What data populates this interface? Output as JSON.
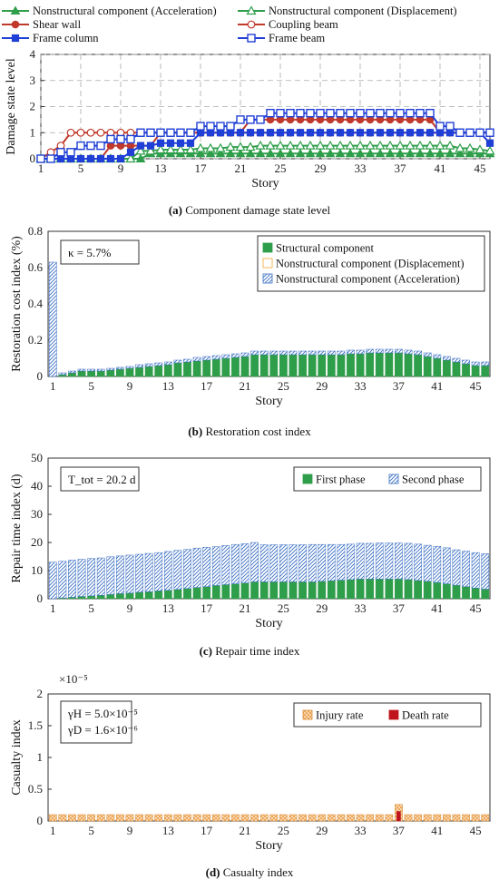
{
  "chart_data": [
    {
      "type": "line",
      "xlabel": "Story",
      "ylabel": "Damage state level",
      "xlim": [
        1,
        46
      ],
      "ylim": [
        0,
        4
      ],
      "xticks": [
        "1",
        "5",
        "9",
        "13",
        "17",
        "21",
        "25",
        "29",
        "33",
        "37",
        "41",
        "45"
      ],
      "yticks": [
        "0",
        "1",
        "2",
        "3",
        "4"
      ],
      "grid": true,
      "legend_position": "top",
      "caption_label": "(a)",
      "caption": "Component damage state level",
      "series": [
        {
          "name": "Nonstructural component (Acceleration)",
          "color": "#2e9e4a",
          "marker": "triangle-filled",
          "values": [
            0,
            0,
            0,
            0,
            0,
            0,
            0,
            0,
            0,
            0,
            0,
            0.2,
            0.2,
            0.2,
            0.2,
            0.2,
            0.2,
            0.2,
            0.2,
            0.2,
            0.2,
            0.2,
            0.2,
            0.2,
            0.2,
            0.2,
            0.2,
            0.2,
            0.2,
            0.2,
            0.2,
            0.2,
            0.2,
            0.2,
            0.2,
            0.2,
            0.2,
            0.2,
            0.2,
            0.2,
            0.2,
            0.2,
            0.2,
            0.2,
            0.2,
            0.2
          ]
        },
        {
          "name": "Nonstructural component (Displacement)",
          "color": "#2e9e4a",
          "marker": "triangle-open",
          "values": [
            0,
            0,
            0,
            0,
            0,
            0,
            0,
            0,
            0,
            0,
            0.3,
            0.3,
            0.35,
            0.35,
            0.35,
            0.35,
            0.4,
            0.4,
            0.4,
            0.45,
            0.45,
            0.45,
            0.5,
            0.5,
            0.5,
            0.5,
            0.5,
            0.5,
            0.5,
            0.5,
            0.5,
            0.5,
            0.5,
            0.5,
            0.5,
            0.5,
            0.5,
            0.5,
            0.5,
            0.5,
            0.5,
            0.5,
            0.4,
            0.4,
            0.35,
            0.3
          ]
        },
        {
          "name": "Shear wall",
          "color": "#c0392b",
          "marker": "circle-filled",
          "values": [
            0,
            0,
            0,
            0,
            0,
            0,
            0,
            0.5,
            0.5,
            0.5,
            0.5,
            0.5,
            1,
            1,
            1,
            1,
            1,
            1,
            1,
            1,
            1,
            1.5,
            1.5,
            1.5,
            1.5,
            1.5,
            1.5,
            1.5,
            1.5,
            1.5,
            1.5,
            1.5,
            1.5,
            1.5,
            1.5,
            1.5,
            1.5,
            1.5,
            1.5,
            1.5,
            1,
            1,
            1,
            1,
            1,
            1
          ]
        },
        {
          "name": "Coupling beam",
          "color": "#c0392b",
          "marker": "circle-open",
          "values": [
            0,
            0.25,
            0.5,
            1,
            1,
            1,
            1,
            1,
            1,
            1,
            1,
            1,
            1,
            1,
            1,
            1,
            1,
            1,
            1,
            1,
            1,
            1,
            1,
            1,
            1,
            1,
            1,
            1,
            1,
            1,
            1,
            1,
            1,
            1,
            1,
            1,
            1,
            1,
            1,
            1,
            1,
            1,
            1,
            1,
            1,
            1
          ]
        },
        {
          "name": "Frame column",
          "color": "#1f3fd6",
          "marker": "square-filled",
          "values": [
            0,
            0,
            0,
            0,
            0,
            0,
            0,
            0,
            0,
            0.25,
            0.5,
            0.5,
            0.6,
            0.6,
            0.6,
            0.6,
            1,
            1,
            1,
            1,
            1,
            1,
            1,
            1,
            1,
            1,
            1,
            1,
            1,
            1,
            1,
            1,
            1,
            1,
            1,
            1,
            1,
            1,
            1,
            1,
            1,
            1,
            1,
            1,
            1,
            0.6
          ]
        },
        {
          "name": "Frame beam",
          "color": "#1f3fd6",
          "marker": "square-open",
          "values": [
            0,
            0,
            0.25,
            0.25,
            0.5,
            0.5,
            0.5,
            0.75,
            0.75,
            0.75,
            1,
            1,
            1,
            1,
            1,
            1,
            1.25,
            1.25,
            1.25,
            1.25,
            1.5,
            1.5,
            1.5,
            1.75,
            1.75,
            1.75,
            1.75,
            1.75,
            1.75,
            1.75,
            1.75,
            1.75,
            1.75,
            1.75,
            1.75,
            1.75,
            1.75,
            1.75,
            1.75,
            1.75,
            1.25,
            1.25,
            1,
            1,
            1,
            1
          ]
        }
      ]
    },
    {
      "type": "bar",
      "stacked": true,
      "xlabel": "Story",
      "ylabel": "Restoration cost index (%)",
      "xlim": [
        1,
        46
      ],
      "ylim": [
        0,
        0.8
      ],
      "xticks": [
        "1",
        "5",
        "9",
        "13",
        "17",
        "21",
        "25",
        "29",
        "33",
        "37",
        "41",
        "45"
      ],
      "yticks": [
        "0",
        "0.2",
        "0.4",
        "0.6",
        "0.8"
      ],
      "annotation": "κ = 5.7%",
      "legend_position": "top-right",
      "caption_label": "(b)",
      "caption": "Restoration cost index",
      "series": [
        {
          "name": "Structural component",
          "color": "#2e9e4a",
          "pattern": "solid",
          "values": [
            0,
            0.01,
            0.02,
            0.03,
            0.03,
            0.03,
            0.035,
            0.04,
            0.045,
            0.05,
            0.055,
            0.06,
            0.065,
            0.075,
            0.08,
            0.085,
            0.09,
            0.095,
            0.1,
            0.105,
            0.11,
            0.12,
            0.12,
            0.12,
            0.12,
            0.12,
            0.12,
            0.12,
            0.12,
            0.12,
            0.12,
            0.125,
            0.125,
            0.13,
            0.13,
            0.13,
            0.13,
            0.125,
            0.12,
            0.11,
            0.1,
            0.09,
            0.08,
            0.07,
            0.06,
            0.06
          ]
        },
        {
          "name": "Nonstructural component (Displacement)",
          "color": "#f0a830",
          "pattern": "open",
          "values": [
            0,
            0,
            0,
            0,
            0,
            0,
            0,
            0,
            0,
            0,
            0,
            0,
            0,
            0,
            0,
            0,
            0,
            0,
            0,
            0,
            0,
            0,
            0,
            0,
            0,
            0,
            0,
            0,
            0,
            0,
            0,
            0,
            0,
            0,
            0,
            0,
            0,
            0,
            0,
            0,
            0,
            0,
            0,
            0,
            0,
            0
          ]
        },
        {
          "name": "Nonstructural component (Acceleration)",
          "color": "#3a6fc4",
          "pattern": "hatch",
          "values": [
            0.63,
            0.01,
            0.01,
            0.01,
            0.01,
            0.01,
            0.01,
            0.01,
            0.01,
            0.015,
            0.015,
            0.015,
            0.015,
            0.015,
            0.015,
            0.02,
            0.02,
            0.02,
            0.02,
            0.02,
            0.02,
            0.02,
            0.02,
            0.02,
            0.02,
            0.02,
            0.02,
            0.02,
            0.02,
            0.02,
            0.02,
            0.02,
            0.02,
            0.02,
            0.02,
            0.02,
            0.02,
            0.02,
            0.02,
            0.02,
            0.02,
            0.02,
            0.02,
            0.02,
            0.02,
            0.02
          ]
        }
      ]
    },
    {
      "type": "bar",
      "stacked": true,
      "xlabel": "Story",
      "ylabel": "Repair time index (d)",
      "xlim": [
        1,
        46
      ],
      "ylim": [
        0,
        50
      ],
      "xticks": [
        "1",
        "5",
        "9",
        "13",
        "17",
        "21",
        "25",
        "29",
        "33",
        "37",
        "41",
        "45"
      ],
      "yticks": [
        "0",
        "10",
        "20",
        "30",
        "40",
        "50"
      ],
      "annotation": "T_tot = 20.2 d",
      "legend_position": "top-right",
      "caption_label": "(c)",
      "caption": "Repair time index",
      "series": [
        {
          "name": "First phase",
          "color": "#2e9e4a",
          "pattern": "solid",
          "values": [
            0,
            0.3,
            0.5,
            0.8,
            1,
            1.2,
            1.5,
            1.8,
            2,
            2.3,
            2.5,
            2.8,
            3,
            3.3,
            3.6,
            4,
            4.3,
            4.7,
            5,
            5.3,
            5.6,
            6,
            6,
            6,
            6,
            6,
            6,
            6,
            6.2,
            6.4,
            6.6,
            6.8,
            7,
            7,
            7,
            7,
            7,
            6.8,
            6.5,
            6.2,
            5.8,
            5.3,
            4.8,
            4.3,
            3.8,
            3.4
          ]
        },
        {
          "name": "Second phase",
          "color": "#3a6fc4",
          "pattern": "hatch",
          "values": [
            13,
            13,
            13.2,
            13.2,
            13.3,
            13.3,
            13.4,
            13.4,
            13.5,
            13.5,
            13.6,
            13.6,
            13.8,
            13.9,
            13.9,
            14,
            14,
            13.8,
            13.9,
            14,
            14,
            14,
            13.2,
            13.2,
            13.2,
            13.2,
            13.2,
            13.3,
            13.1,
            12.9,
            12.7,
            12.6,
            12.7,
            12.7,
            12.8,
            12.8,
            12.8,
            12.9,
            12.9,
            12.8,
            12.8,
            12.8,
            12.6,
            12.6,
            12.6,
            12.6
          ]
        }
      ]
    },
    {
      "type": "bar",
      "xlabel": "Story",
      "ylabel": "Casualty index",
      "xlim": [
        1,
        46
      ],
      "ylim": [
        0,
        2
      ],
      "multiplier": "×10⁻⁵",
      "xticks": [
        "1",
        "5",
        "9",
        "13",
        "17",
        "21",
        "25",
        "29",
        "33",
        "37",
        "41",
        "45"
      ],
      "yticks": [
        "0",
        "0.5",
        "1",
        "1.5",
        "2"
      ],
      "annotation": [
        "γH = 5.0×10⁻⁵",
        "γD = 1.6×10⁻⁶"
      ],
      "legend_position": "top-right",
      "caption_label": "(d)",
      "caption": "Casualty index",
      "series": [
        {
          "name": "Injury rate",
          "color": "#e8943a",
          "pattern": "cross",
          "values": [
            0.1,
            0.1,
            0.1,
            0.1,
            0.1,
            0.1,
            0.1,
            0.1,
            0.1,
            0.1,
            0.1,
            0.1,
            0.1,
            0.1,
            0.1,
            0.1,
            0.1,
            0.1,
            0.1,
            0.1,
            0.1,
            0.1,
            0.1,
            0.1,
            0.1,
            0.1,
            0.1,
            0.1,
            0.1,
            0.1,
            0.1,
            0.1,
            0.1,
            0.1,
            0.1,
            0.1,
            0.26,
            0.1,
            0.1,
            0.1,
            0.1,
            0.1,
            0.1,
            0.1,
            0.1,
            0.1
          ]
        },
        {
          "name": "Death rate",
          "color": "#c0141c",
          "pattern": "solid",
          "values": [
            0,
            0,
            0,
            0,
            0,
            0,
            0,
            0,
            0,
            0,
            0,
            0,
            0,
            0,
            0,
            0,
            0,
            0,
            0,
            0,
            0,
            0,
            0,
            0,
            0,
            0,
            0,
            0,
            0,
            0,
            0,
            0,
            0,
            0,
            0,
            0,
            0.15,
            0,
            0,
            0,
            0,
            0,
            0,
            0,
            0,
            0
          ]
        }
      ]
    }
  ]
}
